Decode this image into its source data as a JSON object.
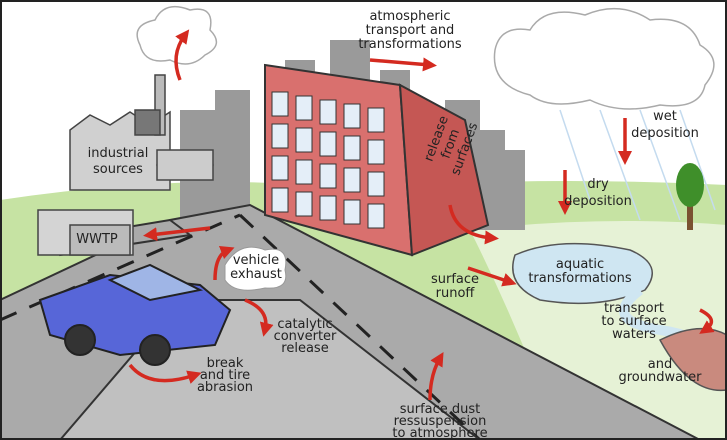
{
  "labels": [
    {
      "lines": [
        "atmospheric",
        "transport and",
        "transformations"
      ]
    },
    {
      "lines": [
        "wet",
        "deposition"
      ]
    },
    {
      "lines": [
        "industrial",
        "sources"
      ]
    },
    {
      "lines": [
        "release",
        "from",
        "surfaces"
      ]
    },
    {
      "lines": [
        "dry",
        "deposition"
      ]
    },
    {
      "lines": [
        "WWTP"
      ]
    },
    {
      "lines": [
        "vehicle",
        "exhaust"
      ]
    },
    {
      "lines": [
        "surface",
        "runoff"
      ]
    },
    {
      "lines": [
        "aquatic",
        "transformations"
      ]
    },
    {
      "lines": [
        "transport",
        "to surface",
        "waters"
      ]
    },
    {
      "lines": [
        "catalytic",
        "converter",
        "release"
      ]
    },
    {
      "lines": [
        "and",
        "groundwater"
      ]
    },
    {
      "lines": [
        "break",
        "and tire",
        "abrasion"
      ]
    },
    {
      "lines": [
        "surface dust",
        "ressuspension",
        "to atmosphere"
      ]
    }
  ]
}
